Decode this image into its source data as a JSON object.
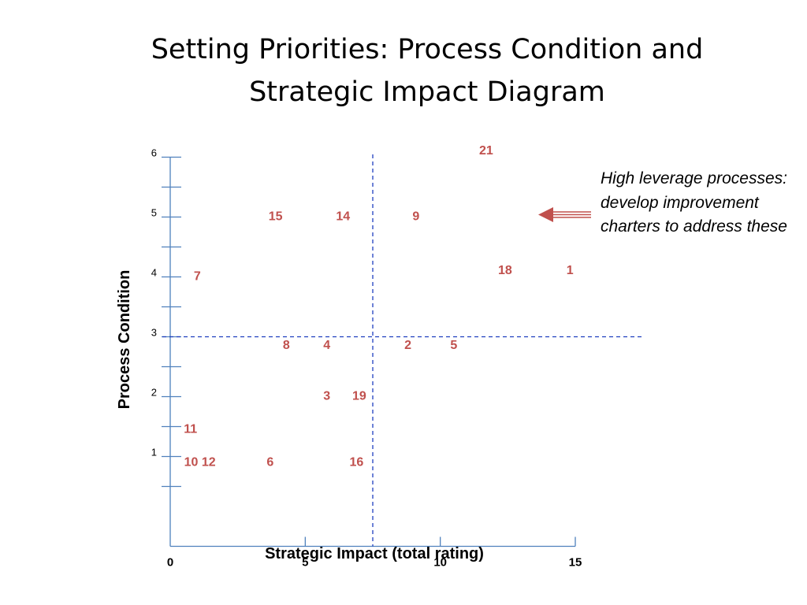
{
  "slide": {
    "title_line1": "Setting Priorities: Process Condition and",
    "title_line2": "Strategic Impact Diagram",
    "callout_text": "High leverage processes: develop improvement charters to address these"
  },
  "colors": {
    "axis": "#4f81bd",
    "divider": "#1f3fbf",
    "point_label": "#c0504d",
    "arrow": "#c0504d",
    "text": "#000000"
  },
  "chart_data": {
    "type": "scatter",
    "title": "",
    "xlabel": "Strategic Impact (total rating)",
    "ylabel": "Process Condition",
    "xlim": [
      0,
      15
    ],
    "ylim": [
      -0.5,
      6
    ],
    "x_ticks": [
      0,
      5,
      10,
      15
    ],
    "y_ticks": [
      1,
      2,
      3,
      4,
      5,
      6
    ],
    "y_minor_step": 0.5,
    "grid": false,
    "dividers": {
      "x": 7.5,
      "y": 3
    },
    "points": [
      {
        "label": "21",
        "x": 11.7,
        "y": 6.1
      },
      {
        "label": "15",
        "x": 3.9,
        "y": 5
      },
      {
        "label": "14",
        "x": 6.4,
        "y": 5
      },
      {
        "label": "9",
        "x": 9.1,
        "y": 5
      },
      {
        "label": "18",
        "x": 12.4,
        "y": 4.1
      },
      {
        "label": "1",
        "x": 14.8,
        "y": 4.1
      },
      {
        "label": "7",
        "x": 1.0,
        "y": 4
      },
      {
        "label": "8",
        "x": 4.3,
        "y": 2.85
      },
      {
        "label": "4",
        "x": 5.8,
        "y": 2.85
      },
      {
        "label": "2",
        "x": 8.8,
        "y": 2.85
      },
      {
        "label": "5",
        "x": 10.5,
        "y": 2.85
      },
      {
        "label": "3",
        "x": 5.8,
        "y": 2
      },
      {
        "label": "19",
        "x": 7.0,
        "y": 2
      },
      {
        "label": "11",
        "x": 0.75,
        "y": 1.45
      },
      {
        "label": "10 12",
        "x": 1.1,
        "y": 0.9
      },
      {
        "label": "6",
        "x": 3.7,
        "y": 0.9
      },
      {
        "label": "16",
        "x": 6.9,
        "y": 0.9
      }
    ]
  }
}
